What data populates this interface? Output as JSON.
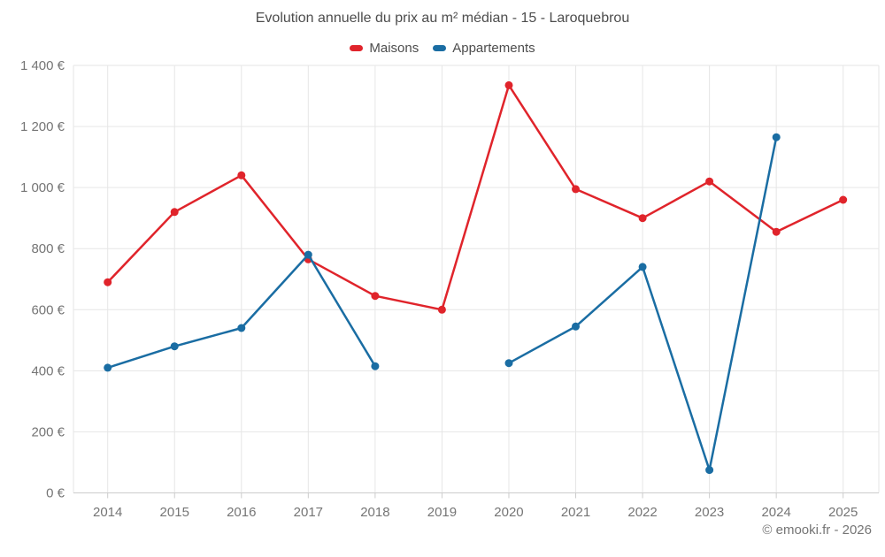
{
  "title": "Evolution annuelle du prix au m² médian - 15 - Laroquebrou",
  "legend": {
    "items": [
      {
        "label": "Maisons",
        "color": "#e0242b"
      },
      {
        "label": "Appartements",
        "color": "#1a6da3"
      }
    ]
  },
  "footer": {
    "credit": "© emooki.fr - 2026"
  },
  "chart_data": {
    "type": "line",
    "title": "Evolution annuelle du prix au m² médian - 15 - Laroquebrou",
    "xlabel": "",
    "ylabel": "",
    "categories": [
      "2014",
      "2015",
      "2016",
      "2017",
      "2018",
      "2019",
      "2020",
      "2021",
      "2022",
      "2023",
      "2024",
      "2025"
    ],
    "series": [
      {
        "name": "Maisons",
        "color": "#e0242b",
        "values": [
          690,
          920,
          1040,
          765,
          645,
          600,
          1335,
          995,
          900,
          1020,
          855,
          960
        ]
      },
      {
        "name": "Appartements",
        "color": "#1a6da3",
        "values": [
          410,
          480,
          540,
          780,
          415,
          null,
          425,
          545,
          740,
          75,
          1165,
          null
        ]
      }
    ],
    "ylim": [
      0,
      1400
    ],
    "y_tick_step": 200,
    "y_tick_labels": [
      "0 €",
      "200 €",
      "400 €",
      "600 €",
      "800 €",
      "1 000 €",
      "1 200 €",
      "1 400 €"
    ],
    "grid": true,
    "legend_position": "top",
    "marker": "circle",
    "colors": {
      "grid": "#e6e6e6",
      "axis": "#cccccc",
      "tick_label": "#757575",
      "title_text": "#4d4d4d"
    }
  }
}
